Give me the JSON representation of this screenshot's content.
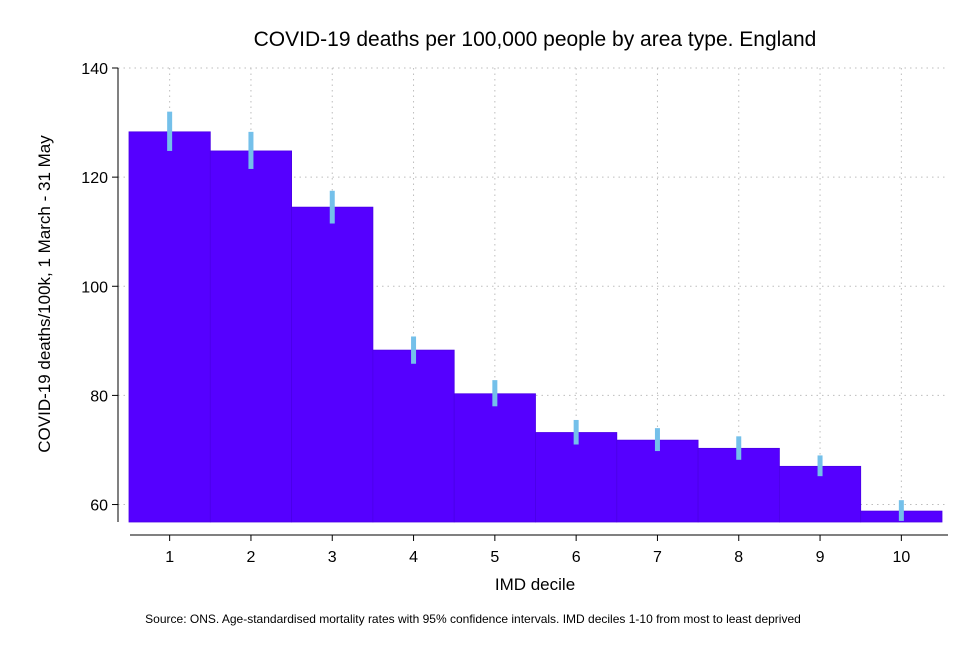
{
  "chart_data": {
    "type": "bar",
    "title": "COVID-19 deaths per 100,000 people by area type. England",
    "xlabel": "IMD decile",
    "ylabel": "COVID-19 deaths/100k, 1 March - 31 May",
    "source": "Source: ONS. Age-standardised mortality rates with 95% confidence intervals. IMD deciles 1-10 from most to least deprived",
    "categories": [
      "1",
      "2",
      "3",
      "4",
      "5",
      "6",
      "7",
      "8",
      "9",
      "10"
    ],
    "values": [
      128.3,
      124.8,
      114.5,
      88.3,
      80.3,
      73.2,
      71.8,
      70.3,
      67.0,
      58.8
    ],
    "ci_low": [
      124.8,
      121.5,
      111.5,
      85.8,
      78.0,
      71.0,
      69.8,
      68.2,
      65.2,
      57.0
    ],
    "ci_high": [
      132.0,
      128.3,
      117.5,
      90.8,
      82.8,
      75.5,
      74.0,
      72.5,
      69.0,
      60.8
    ],
    "ylim": [
      56.8,
      140
    ],
    "yticks": [
      60,
      80,
      100,
      120,
      140
    ],
    "grid": true,
    "colors": {
      "bar": "#5500ff",
      "bar_edge": "#4a00e6",
      "error_bar": "#74c0ea",
      "grid": "#bdbdbd",
      "axis": "#000000"
    }
  }
}
